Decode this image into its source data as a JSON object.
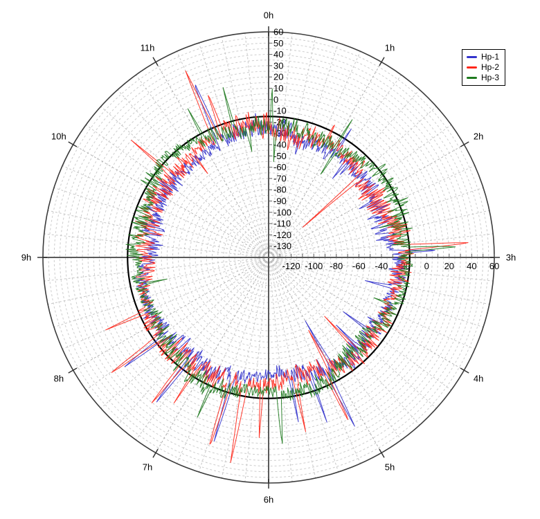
{
  "chart_data": {
    "type": "line",
    "subtype": "polar-clock-plot",
    "title": "",
    "angular_axis": {
      "unit": "hours",
      "total_hours": 12,
      "hour_labels": [
        "0h",
        "1h",
        "2h",
        "3h",
        "4h",
        "5h",
        "6h",
        "7h",
        "8h",
        "9h",
        "10h",
        "11h"
      ],
      "hour_step_deg": 30,
      "minor_step_deg": 6,
      "direction": "clockwise",
      "zero_position": "top"
    },
    "radial_axis": {
      "min": -140,
      "max": 60,
      "ring_step": 5,
      "tick_step": 10,
      "vertical_tick_labels": [
        60,
        50,
        40,
        30,
        20,
        10,
        0,
        -10,
        -20,
        -30,
        -40,
        -50,
        -60,
        -70,
        -80,
        -90,
        -100,
        -110,
        -120,
        -130
      ],
      "horizontal_tick_labels": [
        -120,
        -100,
        -80,
        -60,
        -40,
        -20,
        0,
        20,
        40,
        60
      ],
      "reference_circle_value": -15
    },
    "grid": {
      "rings_dashed": true,
      "spokes_dashed": true,
      "ring_color": "#cccccc",
      "spoke_color": "#c6c6c6",
      "hour_spoke_color": "#ababab",
      "axis_color": "#5a5a5a",
      "outer_circle_color": "#3c3c3c",
      "reference_circle_color": "#000000"
    },
    "legend": {
      "position": "top-right",
      "border": true
    },
    "series": [
      {
        "name": "Hp-1",
        "color": "#3333cc",
        "base_level": -30,
        "noise_amplitude": 12,
        "seed": 11
      },
      {
        "name": "Hp-2",
        "color": "#ff2619",
        "base_level": -26,
        "noise_amplitude": 14,
        "seed": 23
      },
      {
        "name": "Hp-3",
        "color": "#1e7a1e",
        "base_level": -21,
        "noise_amplitude": 12,
        "seed": 37
      }
    ],
    "points_per_series": 1440,
    "band_range_typical": [
      -48,
      -5
    ],
    "spikes": [
      {
        "hour": 0.04,
        "series": "Hp-3",
        "value": 12,
        "width": 0.02
      },
      {
        "hour": 0.1,
        "series": "Hp-3",
        "value": -55,
        "width": 0.025
      },
      {
        "hour": 0.33,
        "series": "Hp-2",
        "value": -46,
        "width": 0.02
      },
      {
        "hour": 0.48,
        "series": "Hp-1",
        "value": -47,
        "width": 0.02
      },
      {
        "hour": 0.88,
        "series": "Hp-2",
        "value": -4,
        "width": 0.02
      },
      {
        "hour": 1.04,
        "series": "Hp-3",
        "value": 6,
        "width": 0.02
      },
      {
        "hour": 1.07,
        "series": "Hp-3",
        "value": -58,
        "width": 0.025
      },
      {
        "hour": 1.09,
        "series": "Hp-1",
        "value": -2,
        "width": 0.02
      },
      {
        "hour": 1.3,
        "series": "Hp-1",
        "value": -50,
        "width": 0.025
      },
      {
        "hour": 1.36,
        "series": "Hp-1",
        "value": -44,
        "width": 0.02
      },
      {
        "hour": 1.62,
        "series": "Hp-2",
        "value": -106,
        "width": 0.035
      },
      {
        "hour": 1.9,
        "series": "Hp-2",
        "value": -45,
        "width": 0.02
      },
      {
        "hour": 2.06,
        "series": "Hp-1",
        "value": -50,
        "width": 0.025
      },
      {
        "hour": 2.3,
        "series": "Hp-1",
        "value": -46,
        "width": 0.02
      },
      {
        "hour": 2.5,
        "series": "Hp-3",
        "value": -38,
        "width": 0.02
      },
      {
        "hour": 2.86,
        "series": "Hp-2",
        "value": 40,
        "width": 0.04
      },
      {
        "hour": 2.89,
        "series": "Hp-3",
        "value": 28,
        "width": 0.035
      },
      {
        "hour": 2.92,
        "series": "Hp-1",
        "value": 12,
        "width": 0.025
      },
      {
        "hour": 3.45,
        "series": "Hp-1",
        "value": -52,
        "width": 0.025
      },
      {
        "hour": 3.7,
        "series": "Hp-3",
        "value": -40,
        "width": 0.02
      },
      {
        "hour": 4.2,
        "series": "Hp-1",
        "value": -58,
        "width": 0.025
      },
      {
        "hour": 4.5,
        "series": "Hp-1",
        "value": -55,
        "width": 0.02
      },
      {
        "hour": 4.55,
        "series": "Hp-2",
        "value": -68,
        "width": 0.03
      },
      {
        "hour": 5.0,
        "series": "Hp-1",
        "value": -75,
        "width": 0.03
      },
      {
        "hour": 5.04,
        "series": "Hp-2",
        "value": -68,
        "width": 0.03
      },
      {
        "hour": 5.1,
        "series": "Hp-1",
        "value": 28,
        "width": 0.03
      },
      {
        "hour": 5.13,
        "series": "Hp-2",
        "value": 27,
        "width": 0.03
      },
      {
        "hour": 5.35,
        "series": "Hp-1",
        "value": 15,
        "width": 0.02
      },
      {
        "hour": 5.6,
        "series": "Hp-2",
        "value": 18,
        "width": 0.025
      },
      {
        "hour": 5.66,
        "series": "Hp-1",
        "value": 12,
        "width": 0.02
      },
      {
        "hour": 5.86,
        "series": "Hp-3",
        "value": 28,
        "width": 0.03
      },
      {
        "hour": 6.1,
        "series": "Hp-2",
        "value": 20,
        "width": 0.025
      },
      {
        "hour": 6.35,
        "series": "Hp-2",
        "value": 45,
        "width": 0.04
      },
      {
        "hour": 6.55,
        "series": "Hp-1",
        "value": 30,
        "width": 0.03
      },
      {
        "hour": 6.58,
        "series": "Hp-2",
        "value": 40,
        "width": 0.035
      },
      {
        "hour": 6.8,
        "series": "Hp-3",
        "value": 15,
        "width": 0.02
      },
      {
        "hour": 7.1,
        "series": "Hp-2",
        "value": 14,
        "width": 0.02
      },
      {
        "hour": 7.26,
        "series": "Hp-1",
        "value": 25,
        "width": 0.03
      },
      {
        "hour": 7.29,
        "series": "Hp-2",
        "value": 28,
        "width": 0.03
      },
      {
        "hour": 7.76,
        "series": "Hp-1",
        "value": 23,
        "width": 0.03
      },
      {
        "hour": 7.79,
        "series": "Hp-2",
        "value": 35,
        "width": 0.035
      },
      {
        "hour": 8.2,
        "series": "Hp-2",
        "value": 18,
        "width": 0.025
      },
      {
        "hour": 8.6,
        "series": "Hp-3",
        "value": -48,
        "width": 0.02
      },
      {
        "hour": 9.4,
        "series": "Hp-2",
        "value": -44,
        "width": 0.02
      },
      {
        "hour": 10.35,
        "series": "Hp-2",
        "value": 20,
        "width": 0.025
      },
      {
        "hour": 10.8,
        "series": "Hp-2",
        "value": -48,
        "width": 0.02
      },
      {
        "hour": 11.05,
        "series": "Hp-3",
        "value": 10,
        "width": 0.02
      },
      {
        "hour": 11.2,
        "series": "Hp-2",
        "value": 41,
        "width": 0.04
      },
      {
        "hour": 11.23,
        "series": "Hp-1",
        "value": 32,
        "width": 0.035
      },
      {
        "hour": 11.32,
        "series": "Hp-2",
        "value": 20,
        "width": 0.025
      },
      {
        "hour": 11.5,
        "series": "Hp-3",
        "value": 16,
        "width": 0.02
      },
      {
        "hour": 11.7,
        "series": "Hp-3",
        "value": -45,
        "width": 0.02
      }
    ]
  }
}
